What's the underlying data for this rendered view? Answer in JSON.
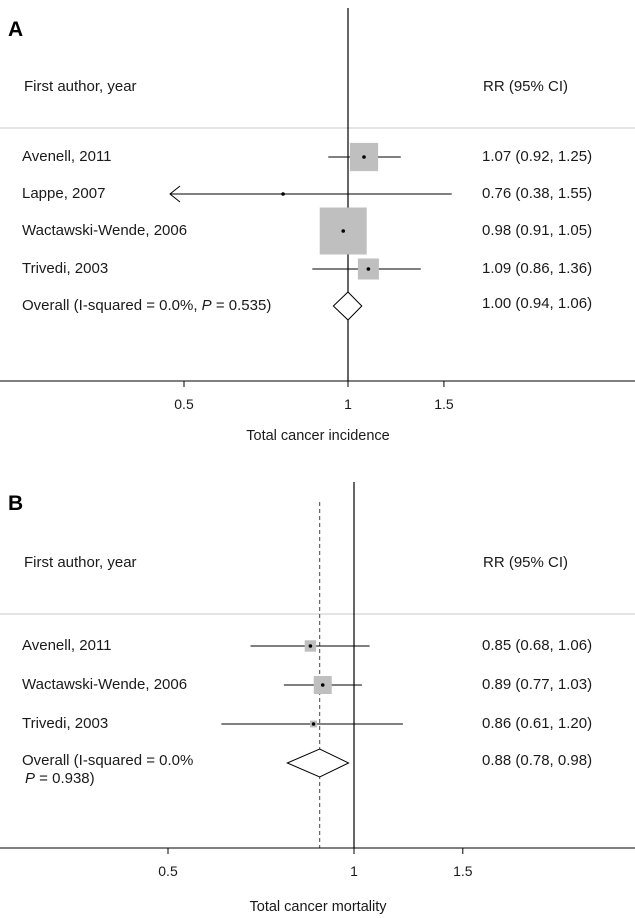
{
  "colors": {
    "box": "#bfbfbf",
    "line": "#000000",
    "divider": "#c8c8c8"
  },
  "chart_data": [
    {
      "type": "forest",
      "panel_label": "A",
      "header_left": "First author, year",
      "header_right": "RR (95% CI)",
      "xlabel": "Total cancer incidence",
      "scale": "log",
      "xticks": [
        0.5,
        1,
        1.5
      ],
      "xtick_labels": [
        "0.5",
        "1",
        "1.5"
      ],
      "studies": [
        {
          "label": "Avenell, 2011",
          "rr": 1.07,
          "lo": 0.92,
          "hi": 1.25,
          "ci_text": "1.07 (0.92, 1.25)",
          "weight": 0.36
        },
        {
          "label": "Lappe, 2007",
          "rr": 0.76,
          "lo": 0.38,
          "hi": 1.55,
          "ci_text": "0.76 (0.38, 1.55)",
          "weight": 0.0,
          "arrow_left": true
        },
        {
          "label": "Wactawski-Wende, 2006",
          "rr": 0.98,
          "lo": 0.91,
          "hi": 1.05,
          "ci_text": "0.98 (0.91, 1.05)",
          "weight": 1.0
        },
        {
          "label": "Trivedi, 2003",
          "rr": 1.09,
          "lo": 0.86,
          "hi": 1.36,
          "ci_text": "1.09 (0.86, 1.36)",
          "weight": 0.2
        }
      ],
      "overall": {
        "label_pre": "Overall  (I-squared = 0.0%, ",
        "label_p": "P",
        "label_post": " = 0.535)",
        "rr": 1.0,
        "lo": 0.94,
        "hi": 1.06,
        "ci_text": "1.00 (0.94, 1.06)"
      }
    },
    {
      "type": "forest",
      "panel_label": "B",
      "header_left": "First author, year",
      "header_right": "RR (95% CI)",
      "xlabel": "Total cancer mortality",
      "scale": "log",
      "xticks": [
        0.5,
        1,
        1.5
      ],
      "xtick_labels": [
        "0.5",
        "1",
        "1.5"
      ],
      "studies": [
        {
          "label": "Avenell, 2011",
          "rr": 0.85,
          "lo": 0.68,
          "hi": 1.06,
          "ci_text": "0.85 (0.68, 1.06)",
          "weight": 0.4
        },
        {
          "label": "Wactawski-Wende, 2006",
          "rr": 0.89,
          "lo": 0.77,
          "hi": 1.03,
          "ci_text": "0.89 (0.77, 1.03)",
          "weight": 1.0
        },
        {
          "label": "Trivedi, 2003",
          "rr": 0.86,
          "lo": 0.61,
          "hi": 1.2,
          "ci_text": "0.86 (0.61, 1.20)",
          "weight": 0.15
        }
      ],
      "overall": {
        "label_pre": "Overall  (I-squared = 0.0%",
        "label_p": "P",
        "label_post": " = 0.938)",
        "rr": 0.88,
        "lo": 0.78,
        "hi": 0.98,
        "ci_text": "0.88 (0.78, 0.98)"
      }
    }
  ]
}
